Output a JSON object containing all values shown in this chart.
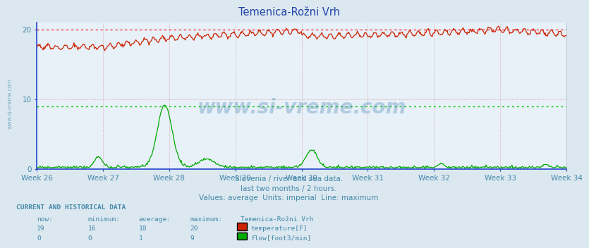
{
  "title": "Temenica-Rožni Vrh",
  "bg_color": "#dce8f0",
  "plot_bg_color": "#e8f0f8",
  "grid_color_v": "#c8a0a0",
  "grid_color_h": "#c8a0a0",
  "x_labels": [
    "Week 26",
    "Week 27",
    "Week 28",
    "Week 29",
    "Week 30",
    "Week 31",
    "Week 32",
    "Week 33",
    "Week 34"
  ],
  "ylim": [
    0,
    21
  ],
  "yticks": [
    0,
    10,
    20
  ],
  "n_points": 672,
  "temp_min": 16,
  "temp_max": 20,
  "temp_avg": 18,
  "temp_now": 19,
  "flow_min": 0,
  "flow_max": 9,
  "flow_avg": 1,
  "flow_now": 0,
  "temp_line_color": "#cc2200",
  "flow_line_color": "#00aa00",
  "dashed_red": "#ff2222",
  "dashed_green": "#00cc00",
  "subtitle1": "Slovenia / river and sea data.",
  "subtitle2": "last two months / 2 hours.",
  "subtitle3": "Values: average  Units: imperial  Line: maximum",
  "watermark": "www.si-vreme.com",
  "label_color": "#4488aa",
  "title_color": "#2244aa",
  "spine_color": "#2244cc"
}
